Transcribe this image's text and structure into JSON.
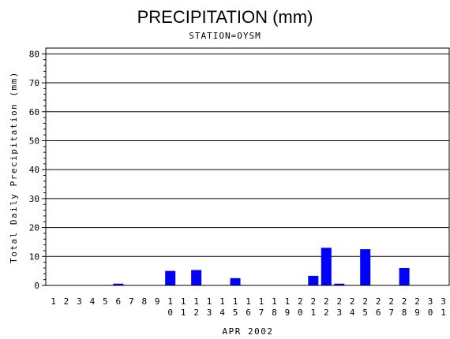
{
  "chart_data": {
    "type": "bar",
    "title": "PRECIPITATION (mm)",
    "subtitle": "STATION=OYSM",
    "xlabel": "APR 2002",
    "ylabel": "Total Daily Precipitation (mm)",
    "ylim": [
      0,
      82
    ],
    "yticks": [
      0,
      10,
      20,
      30,
      40,
      50,
      60,
      70,
      80
    ],
    "grid": true,
    "bar_color": "#0000ff",
    "categories": [
      "1",
      "2",
      "3",
      "4",
      "5",
      "6",
      "7",
      "8",
      "9",
      "10",
      "11",
      "12",
      "13",
      "14",
      "15",
      "16",
      "17",
      "18",
      "19",
      "20",
      "21",
      "22",
      "23",
      "24",
      "25",
      "26",
      "27",
      "28",
      "29",
      "30",
      "31"
    ],
    "values": [
      0,
      0,
      0,
      0,
      0,
      0.6,
      0,
      0,
      0,
      5.0,
      0,
      5.3,
      0,
      0,
      2.5,
      0,
      0,
      0,
      0,
      0,
      3.3,
      13.0,
      0.6,
      0,
      12.5,
      0,
      0,
      6.0,
      0,
      0,
      0
    ]
  }
}
